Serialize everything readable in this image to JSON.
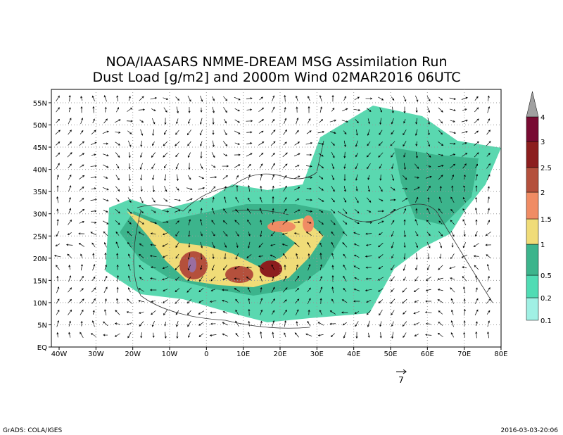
{
  "title": [
    "NOA/IAASARS NMME-DREAM MSG Assimilation Run",
    "Dust Load [g/m2] and 2000m Wind 02MAR2016 06UTC"
  ],
  "map": {
    "lon_labels": [
      "40W",
      "30W",
      "20W",
      "10W",
      "0",
      "10E",
      "20E",
      "30E",
      "40E",
      "50E",
      "60E",
      "70E",
      "80E"
    ],
    "lat_labels": [
      "EQ",
      "5N",
      "10N",
      "15N",
      "20N",
      "25N",
      "30N",
      "35N",
      "40N",
      "45N",
      "50N",
      "55N"
    ]
  },
  "colorbar": {
    "levels": [
      0.1,
      0.2,
      0.5,
      1,
      1.5,
      2,
      2.5,
      3,
      4
    ]
  },
  "wind_reference": "7",
  "footer": {
    "left": "GrADS: COLA/IGES",
    "right": "2016-03-03-20:06"
  }
}
